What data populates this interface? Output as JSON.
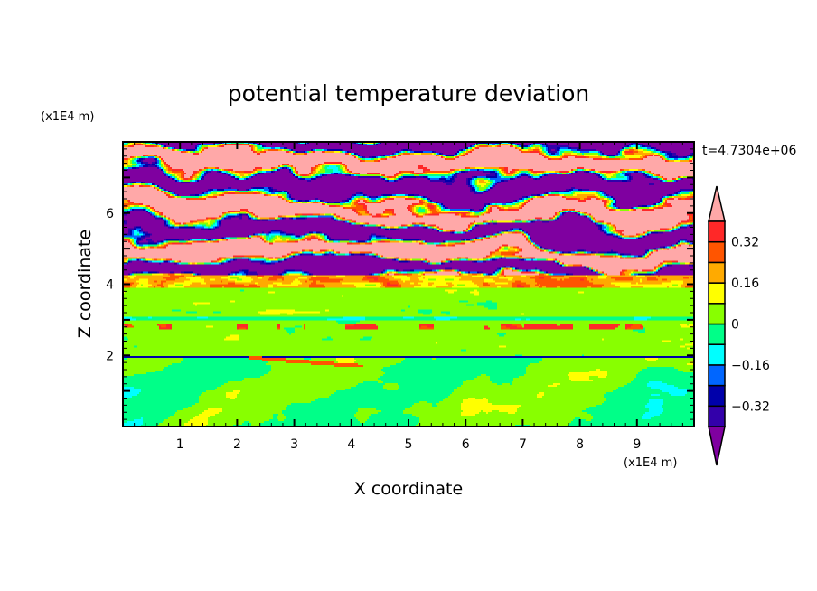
{
  "chart_data": {
    "type": "heatmap",
    "title": "potential temperature deviation",
    "xlabel": "X coordinate",
    "ylabel": "Z coordinate",
    "x_unit": "(x1E4 m)",
    "y_unit": "(x1E4 m)",
    "time_label": "t=4.7304e+06",
    "xlim": [
      0,
      10
    ],
    "ylim": [
      0,
      8
    ],
    "xticks": [
      1,
      2,
      3,
      4,
      5,
      6,
      7,
      8,
      9
    ],
    "yticks": [
      2,
      4,
      6
    ],
    "colorbar": {
      "levels": [
        -0.4,
        -0.32,
        -0.24,
        -0.16,
        -0.08,
        0,
        0.08,
        0.16,
        0.24,
        0.32,
        0.4
      ],
      "tick_labels": [
        "0.32",
        "0.16",
        "0",
        "−0.16",
        "−0.32"
      ],
      "tick_values": [
        0.32,
        0.16,
        0,
        -0.16,
        -0.32
      ],
      "colors": [
        "#7f00a0",
        "#3300aa",
        "#0000aa",
        "#0066ff",
        "#00ffff",
        "#00ff88",
        "#88ff00",
        "#ffff00",
        "#ffaa00",
        "#ff5500",
        "#ff2828",
        "#ffa8a8"
      ],
      "extend": "both"
    }
  }
}
